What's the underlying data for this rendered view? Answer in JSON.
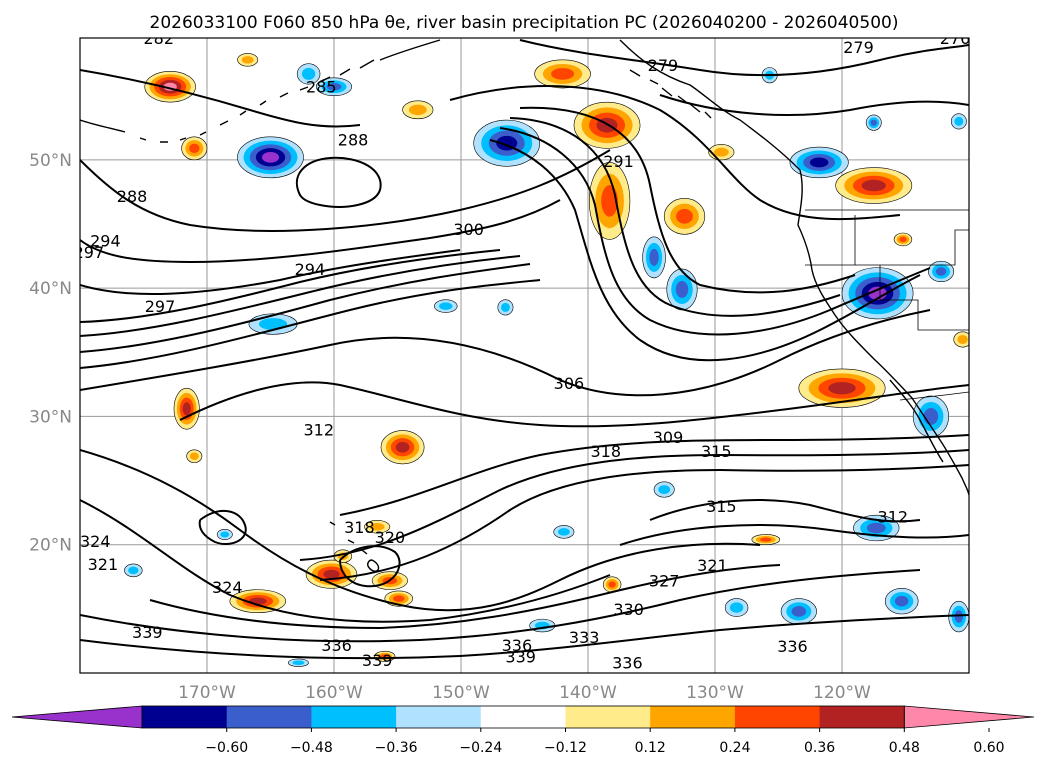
{
  "title": "2026033100 F060 850 hPa θe, river basin precipitation PC (2026040200 - 2026040500)",
  "map": {
    "lat_labels": [
      "50°N",
      "40°N",
      "30°N",
      "20°N"
    ],
    "lon_labels": [
      "170°W",
      "160°W",
      "150°W",
      "140°W",
      "130°W",
      "120°W"
    ],
    "lat_range": [
      10,
      59.5
    ],
    "lon_range": [
      -180,
      -110
    ],
    "gridlines": true
  },
  "contour_labels": [
    {
      "text": "282",
      "lon": -173.8,
      "lat": 59.5
    },
    {
      "text": "285",
      "lon": -161.0,
      "lat": 55.7
    },
    {
      "text": "288",
      "lon": -158.5,
      "lat": 51.6
    },
    {
      "text": "288",
      "lon": -175.9,
      "lat": 47.2
    },
    {
      "text": "297",
      "lon": -179.3,
      "lat": 42.8
    },
    {
      "text": "294",
      "lon": -178.0,
      "lat": 43.7
    },
    {
      "text": "294",
      "lon": -161.9,
      "lat": 41.5
    },
    {
      "text": "300",
      "lon": -149.4,
      "lat": 44.6
    },
    {
      "text": "297",
      "lon": -173.7,
      "lat": 38.6
    },
    {
      "text": "291",
      "lon": -137.6,
      "lat": 49.9
    },
    {
      "text": "279",
      "lon": -134.1,
      "lat": 57.4
    },
    {
      "text": "279",
      "lon": -118.7,
      "lat": 58.8
    },
    {
      "text": "276",
      "lon": -111.1,
      "lat": 59.5
    },
    {
      "text": "306",
      "lon": -141.5,
      "lat": 32.6
    },
    {
      "text": "312",
      "lon": -161.2,
      "lat": 29.0
    },
    {
      "text": "309",
      "lon": -133.7,
      "lat": 28.4
    },
    {
      "text": "318",
      "lon": -138.6,
      "lat": 27.3
    },
    {
      "text": "315",
      "lon": -129.9,
      "lat": 27.3
    },
    {
      "text": "315",
      "lon": -129.5,
      "lat": 23.0
    },
    {
      "text": "312",
      "lon": -116.0,
      "lat": 22.2
    },
    {
      "text": "321",
      "lon": -130.2,
      "lat": 18.4
    },
    {
      "text": "327",
      "lon": -134.0,
      "lat": 17.2
    },
    {
      "text": "330",
      "lon": -136.8,
      "lat": 15.0
    },
    {
      "text": "333",
      "lon": -140.3,
      "lat": 12.8
    },
    {
      "text": "336",
      "lon": -145.6,
      "lat": 12.2
    },
    {
      "text": "339",
      "lon": -145.3,
      "lat": 11.3
    },
    {
      "text": "336",
      "lon": -136.9,
      "lat": 10.8
    },
    {
      "text": "336",
      "lon": -123.9,
      "lat": 12.1
    },
    {
      "text": "336",
      "lon": -159.8,
      "lat": 12.2
    },
    {
      "text": "339",
      "lon": -156.6,
      "lat": 11.0
    },
    {
      "text": "339",
      "lon": -174.7,
      "lat": 13.2
    },
    {
      "text": "324",
      "lon": -168.4,
      "lat": 16.7
    },
    {
      "text": "324",
      "lon": -178.8,
      "lat": 20.3
    },
    {
      "text": "321",
      "lon": -178.2,
      "lat": 18.5
    },
    {
      "text": "318",
      "lon": -158.0,
      "lat": 21.4
    },
    {
      "text": "320",
      "lon": -155.6,
      "lat": 20.6
    }
  ],
  "precip_blobs": [
    {
      "lon": -172.9,
      "lat": 55.7,
      "rx": 2.0,
      "ry": 1.2,
      "v": 0.65
    },
    {
      "lon": -162.0,
      "lat": 56.7,
      "rx": 0.9,
      "ry": 0.8,
      "v": -0.3
    },
    {
      "lon": -160.0,
      "lat": 55.7,
      "rx": 1.4,
      "ry": 0.7,
      "v": -0.45
    },
    {
      "lon": -166.8,
      "lat": 57.8,
      "rx": 0.8,
      "ry": 0.5,
      "v": 0.3
    },
    {
      "lon": -165.0,
      "lat": 50.2,
      "rx": 2.6,
      "ry": 1.6,
      "v": -0.62
    },
    {
      "lon": -171.0,
      "lat": 50.9,
      "rx": 1.0,
      "ry": 0.9,
      "v": 0.4
    },
    {
      "lon": -153.4,
      "lat": 53.9,
      "rx": 1.2,
      "ry": 0.7,
      "v": 0.3
    },
    {
      "lon": -146.4,
      "lat": 51.3,
      "rx": 2.6,
      "ry": 1.8,
      "v": -0.58
    },
    {
      "lon": -142.0,
      "lat": 56.7,
      "rx": 2.2,
      "ry": 1.1,
      "v": 0.4
    },
    {
      "lon": -138.5,
      "lat": 52.7,
      "rx": 2.6,
      "ry": 1.8,
      "v": 0.55
    },
    {
      "lon": -138.3,
      "lat": 46.8,
      "rx": 1.6,
      "ry": 3.0,
      "v": 0.42
    },
    {
      "lon": -132.4,
      "lat": 45.6,
      "rx": 1.6,
      "ry": 1.4,
      "v": 0.45
    },
    {
      "lon": -134.8,
      "lat": 42.4,
      "rx": 0.9,
      "ry": 1.6,
      "v": -0.4
    },
    {
      "lon": -132.6,
      "lat": 39.9,
      "rx": 1.2,
      "ry": 1.6,
      "v": -0.45
    },
    {
      "lon": -129.5,
      "lat": 50.6,
      "rx": 1.0,
      "ry": 0.6,
      "v": 0.25
    },
    {
      "lon": -121.8,
      "lat": 49.8,
      "rx": 2.3,
      "ry": 1.2,
      "v": -0.5
    },
    {
      "lon": -117.5,
      "lat": 48.0,
      "rx": 3.0,
      "ry": 1.4,
      "v": 0.58
    },
    {
      "lon": -117.2,
      "lat": 39.6,
      "rx": 2.8,
      "ry": 2.0,
      "v": -0.62
    },
    {
      "lon": -112.2,
      "lat": 41.3,
      "rx": 1.0,
      "ry": 0.8,
      "v": -0.4
    },
    {
      "lon": -120.0,
      "lat": 32.2,
      "rx": 3.4,
      "ry": 1.5,
      "v": 0.58
    },
    {
      "lon": -113.0,
      "lat": 30.0,
      "rx": 1.4,
      "ry": 1.6,
      "v": -0.45
    },
    {
      "lon": -154.6,
      "lat": 27.6,
      "rx": 1.7,
      "ry": 1.3,
      "v": 0.55
    },
    {
      "lon": -171.6,
      "lat": 30.6,
      "rx": 1.0,
      "ry": 1.6,
      "v": 0.5
    },
    {
      "lon": -171.0,
      "lat": 26.9,
      "rx": 0.6,
      "ry": 0.5,
      "v": 0.35
    },
    {
      "lon": -146.5,
      "lat": 38.5,
      "rx": 0.6,
      "ry": 0.6,
      "v": -0.25
    },
    {
      "lon": -164.8,
      "lat": 37.2,
      "rx": 1.9,
      "ry": 0.8,
      "v": -0.35
    },
    {
      "lon": -151.2,
      "lat": 38.6,
      "rx": 0.9,
      "ry": 0.5,
      "v": -0.3
    },
    {
      "lon": -160.2,
      "lat": 17.7,
      "rx": 2.0,
      "ry": 1.1,
      "v": 0.55
    },
    {
      "lon": -155.6,
      "lat": 17.2,
      "rx": 1.4,
      "ry": 0.7,
      "v": 0.45
    },
    {
      "lon": -166.0,
      "lat": 15.6,
      "rx": 2.2,
      "ry": 0.9,
      "v": 0.55
    },
    {
      "lon": -154.9,
      "lat": 15.8,
      "rx": 1.1,
      "ry": 0.6,
      "v": 0.4
    },
    {
      "lon": -175.8,
      "lat": 18.0,
      "rx": 0.7,
      "ry": 0.5,
      "v": -0.35
    },
    {
      "lon": -141.9,
      "lat": 21.0,
      "rx": 0.8,
      "ry": 0.5,
      "v": -0.3
    },
    {
      "lon": -134.0,
      "lat": 24.3,
      "rx": 0.8,
      "ry": 0.6,
      "v": -0.3
    },
    {
      "lon": -126.0,
      "lat": 20.4,
      "rx": 1.1,
      "ry": 0.4,
      "v": 0.45
    },
    {
      "lon": -117.3,
      "lat": 21.3,
      "rx": 1.8,
      "ry": 1.0,
      "v": -0.4
    },
    {
      "lon": -123.4,
      "lat": 14.8,
      "rx": 1.4,
      "ry": 1.0,
      "v": -0.4
    },
    {
      "lon": -115.3,
      "lat": 15.6,
      "rx": 1.3,
      "ry": 1.0,
      "v": -0.4
    },
    {
      "lon": -110.8,
      "lat": 14.4,
      "rx": 0.8,
      "ry": 1.2,
      "v": -0.4
    },
    {
      "lon": -128.3,
      "lat": 15.1,
      "rx": 0.9,
      "ry": 0.7,
      "v": -0.35
    },
    {
      "lon": -138.1,
      "lat": 16.9,
      "rx": 0.7,
      "ry": 0.6,
      "v": 0.4
    },
    {
      "lon": -156.6,
      "lat": 21.4,
      "rx": 1.0,
      "ry": 0.5,
      "v": 0.35
    },
    {
      "lon": -159.3,
      "lat": 19.1,
      "rx": 0.7,
      "ry": 0.5,
      "v": 0.35
    },
    {
      "lon": -168.6,
      "lat": 20.8,
      "rx": 0.6,
      "ry": 0.4,
      "v": -0.3
    },
    {
      "lon": -110.5,
      "lat": 36.0,
      "rx": 0.7,
      "ry": 0.6,
      "v": 0.35
    },
    {
      "lon": -162.8,
      "lat": 10.8,
      "rx": 0.8,
      "ry": 0.3,
      "v": -0.35
    },
    {
      "lon": -156.0,
      "lat": 11.3,
      "rx": 0.8,
      "ry": 0.4,
      "v": 0.4
    },
    {
      "lon": -143.6,
      "lat": 13.7,
      "rx": 1.0,
      "ry": 0.5,
      "v": -0.35
    },
    {
      "lon": -117.5,
      "lat": 52.9,
      "rx": 0.6,
      "ry": 0.6,
      "v": -0.4
    },
    {
      "lon": -110.8,
      "lat": 53.0,
      "rx": 0.6,
      "ry": 0.6,
      "v": -0.35
    },
    {
      "lon": -125.7,
      "lat": 56.6,
      "rx": 0.6,
      "ry": 0.6,
      "v": -0.3
    },
    {
      "lon": -115.2,
      "lat": 43.8,
      "rx": 0.7,
      "ry": 0.5,
      "v": 0.4
    }
  ],
  "colorbar": {
    "labels": [
      "−0.60",
      "−0.48",
      "−0.36",
      "−0.24",
      "−0.12",
      "0.12",
      "0.24",
      "0.36",
      "0.48",
      "0.60"
    ],
    "colors": [
      "#9932cc",
      "#000090",
      "#3a5fcd",
      "#00bfff",
      "#b0e2ff",
      "#ffffff",
      "#ffeb8a",
      "#ffa500",
      "#ff4500",
      "#b22222",
      "#ff88aa"
    ]
  }
}
